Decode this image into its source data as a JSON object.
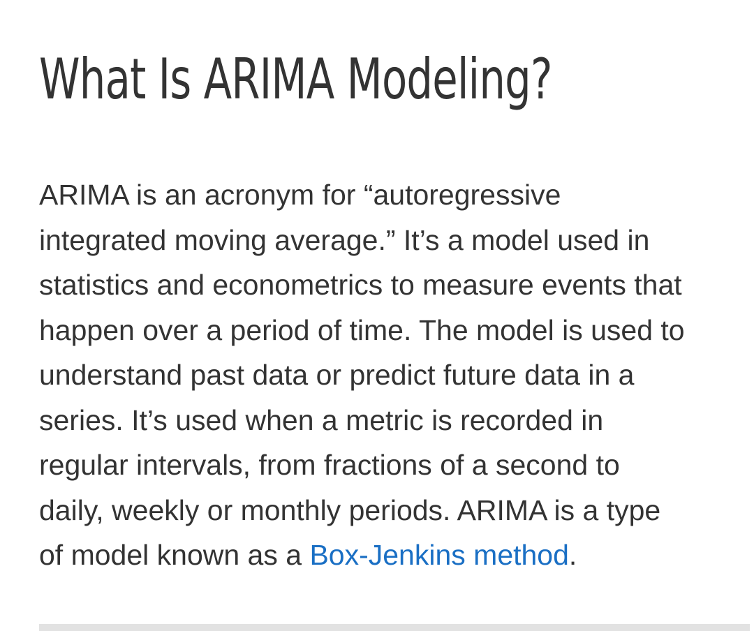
{
  "article": {
    "title": "What Is ARIMA Modeling?",
    "paragraph_lines": [
      "ARIMA is an acronym for “autoregressive",
      "integrated moving average.” It’s a model used in",
      "statistics and econometrics to measure events that",
      "happen over a period of time. The model is used to",
      "understand past data or predict future data in a",
      "series. It’s used when a metric is recorded in",
      "regular intervals, from fractions of a second to",
      "daily, weekly or monthly periods. ARIMA is a type"
    ],
    "last_line_prefix": "of model known as a ",
    "link_text": "Box-Jenkins method",
    "last_line_suffix": "."
  },
  "colors": {
    "text": "#333333",
    "link": "#1a6fc4",
    "divider": "#e2e2e2"
  }
}
